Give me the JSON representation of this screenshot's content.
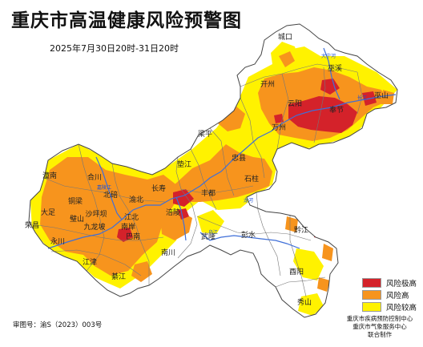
{
  "title": "重庆市高温健康风险预警图",
  "subtitle": "2025年7月30日20时-31日20时",
  "approval_number": "审图号：渝S（2023）003号",
  "credits": [
    "重庆市疾病预防控制中心",
    "重庆市气象服务中心",
    "联合制作"
  ],
  "legend": [
    {
      "label": "风险极高",
      "color": "#d4222a"
    },
    {
      "label": "风险高",
      "color": "#f7941d"
    },
    {
      "label": "风险较高",
      "color": "#fff200"
    }
  ],
  "colors": {
    "low_area": "#ffffff",
    "border": "#555555",
    "river": "#3f6fd8"
  },
  "districts": [
    {
      "name": "城口"
    },
    {
      "name": "巫溪"
    },
    {
      "name": "开州"
    },
    {
      "name": "云阳"
    },
    {
      "name": "奉节"
    },
    {
      "name": "巫山"
    },
    {
      "name": "万州"
    },
    {
      "name": "梁平"
    },
    {
      "name": "垫江"
    },
    {
      "name": "忠县"
    },
    {
      "name": "石柱"
    },
    {
      "name": "丰都"
    },
    {
      "name": "长寿"
    },
    {
      "name": "涪陵"
    },
    {
      "name": "潼南"
    },
    {
      "name": "合川"
    },
    {
      "name": "铜梁"
    },
    {
      "name": "北碚"
    },
    {
      "name": "渝北"
    },
    {
      "name": "大足"
    },
    {
      "name": "荣昌"
    },
    {
      "name": "永川"
    },
    {
      "name": "璧山"
    },
    {
      "name": "沙坪坝"
    },
    {
      "name": "九龙坡"
    },
    {
      "name": "江北"
    },
    {
      "name": "南岸"
    },
    {
      "name": "巴南"
    },
    {
      "name": "江津"
    },
    {
      "name": "綦江"
    },
    {
      "name": "南川"
    },
    {
      "name": "武隆"
    },
    {
      "name": "彭水"
    },
    {
      "name": "黔江"
    },
    {
      "name": "酉阳"
    },
    {
      "name": "秀山"
    }
  ],
  "water_labels": [
    {
      "name": "大宁河"
    },
    {
      "name": "长江"
    },
    {
      "name": "嘉陵江"
    },
    {
      "name": "乌江"
    },
    {
      "name": "龙河"
    }
  ]
}
